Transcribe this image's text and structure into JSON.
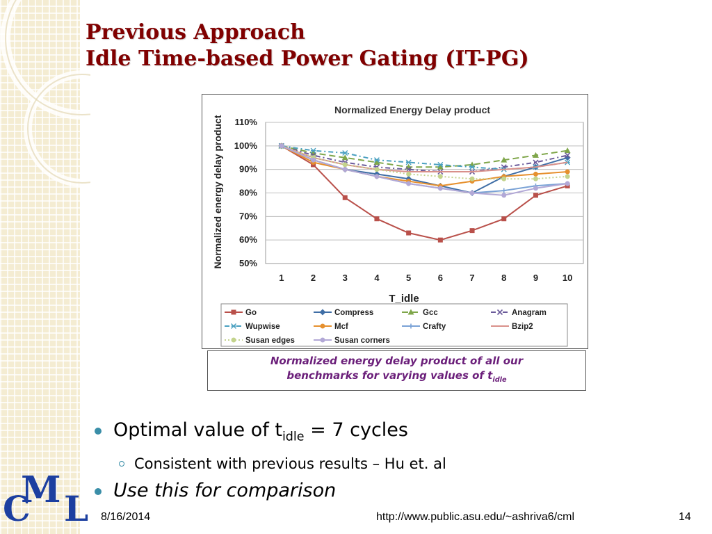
{
  "slide": {
    "title_line1": "Previous Approach",
    "title_line2": "Idle Time-based Power Gating (IT-PG)",
    "caption_line1": "Normalized energy delay product of all our",
    "caption_line2_main": "benchmarks for varying values of t",
    "caption_line2_sub": "idle",
    "bullet1_main": "Optimal value of t",
    "bullet1_sub": "idle",
    "bullet1_rest": " = 7 cycles",
    "bullet2": "Consistent with previous results – Hu et. al",
    "bullet3": "Use this for comparison",
    "logo_c": "C",
    "logo_m": "M",
    "logo_l": "L",
    "footer_date": "8/16/2014",
    "footer_url": "http://www.public.asu.edu/~ashriva6/cml",
    "footer_page": "14"
  },
  "colors": {
    "title": "#800000",
    "caption": "#6b1f7a",
    "bullet": "#3a8ea8",
    "logo": "#1c3fa0"
  },
  "chart_data": {
    "type": "line",
    "title": "Normalized Energy Delay product",
    "xlabel": "T_idle",
    "ylabel": "Normalized energy delay product",
    "x": [
      1,
      2,
      3,
      4,
      5,
      6,
      7,
      8,
      9,
      10
    ],
    "ylim": [
      50,
      110
    ],
    "yticks": [
      "50%",
      "60%",
      "70%",
      "80%",
      "90%",
      "100%",
      "110%"
    ],
    "grid": true,
    "legend_position": "bottom",
    "series": [
      {
        "name": "Go",
        "color": "#b9504a",
        "dash": "",
        "marker": "square",
        "values": [
          100,
          92,
          78,
          69,
          63,
          60,
          64,
          69,
          79,
          83
        ]
      },
      {
        "name": "Compress",
        "color": "#3f6ea6",
        "dash": "",
        "marker": "diamond",
        "values": [
          100,
          94,
          90,
          88,
          86,
          83,
          80,
          87,
          91,
          95
        ]
      },
      {
        "name": "Gcc",
        "color": "#7fa64a",
        "dash": "9,5",
        "marker": "triangle",
        "values": [
          100,
          97,
          95,
          93,
          91,
          91,
          92,
          94,
          96,
          98
        ]
      },
      {
        "name": "Anagram",
        "color": "#6a5a9a",
        "dash": "7,4,2,4",
        "marker": "x",
        "values": [
          100,
          96,
          93,
          91,
          90,
          89,
          89,
          91,
          93,
          96
        ]
      },
      {
        "name": "Wupwise",
        "color": "#4aa0c0",
        "dash": "7,4,2,4",
        "marker": "star",
        "values": [
          100,
          98,
          97,
          94,
          93,
          92,
          91,
          90,
          91,
          93
        ]
      },
      {
        "name": "Mcf",
        "color": "#e6902e",
        "dash": "",
        "marker": "circle",
        "values": [
          100,
          93,
          90,
          87,
          85,
          83,
          85,
          87,
          88,
          89
        ]
      },
      {
        "name": "Crafty",
        "color": "#7aa2d6",
        "dash": "",
        "marker": "plus",
        "values": [
          100,
          94,
          90,
          87,
          84,
          82,
          80,
          81,
          83,
          84
        ]
      },
      {
        "name": "Bzip2",
        "color": "#d9908a",
        "dash": "",
        "marker": "none",
        "values": [
          100,
          95,
          92,
          90,
          89,
          89,
          89,
          90,
          91,
          93
        ]
      },
      {
        "name": "Susan edges",
        "color": "#c3d38c",
        "dash": "2,3",
        "marker": "circle",
        "values": [
          100,
          95,
          92,
          90,
          88,
          87,
          86,
          86,
          86,
          87
        ]
      },
      {
        "name": "Susan corners",
        "color": "#b2a8d6",
        "dash": "",
        "marker": "circle",
        "values": [
          100,
          94,
          90,
          87,
          84,
          82,
          80,
          79,
          82,
          84
        ]
      }
    ]
  }
}
